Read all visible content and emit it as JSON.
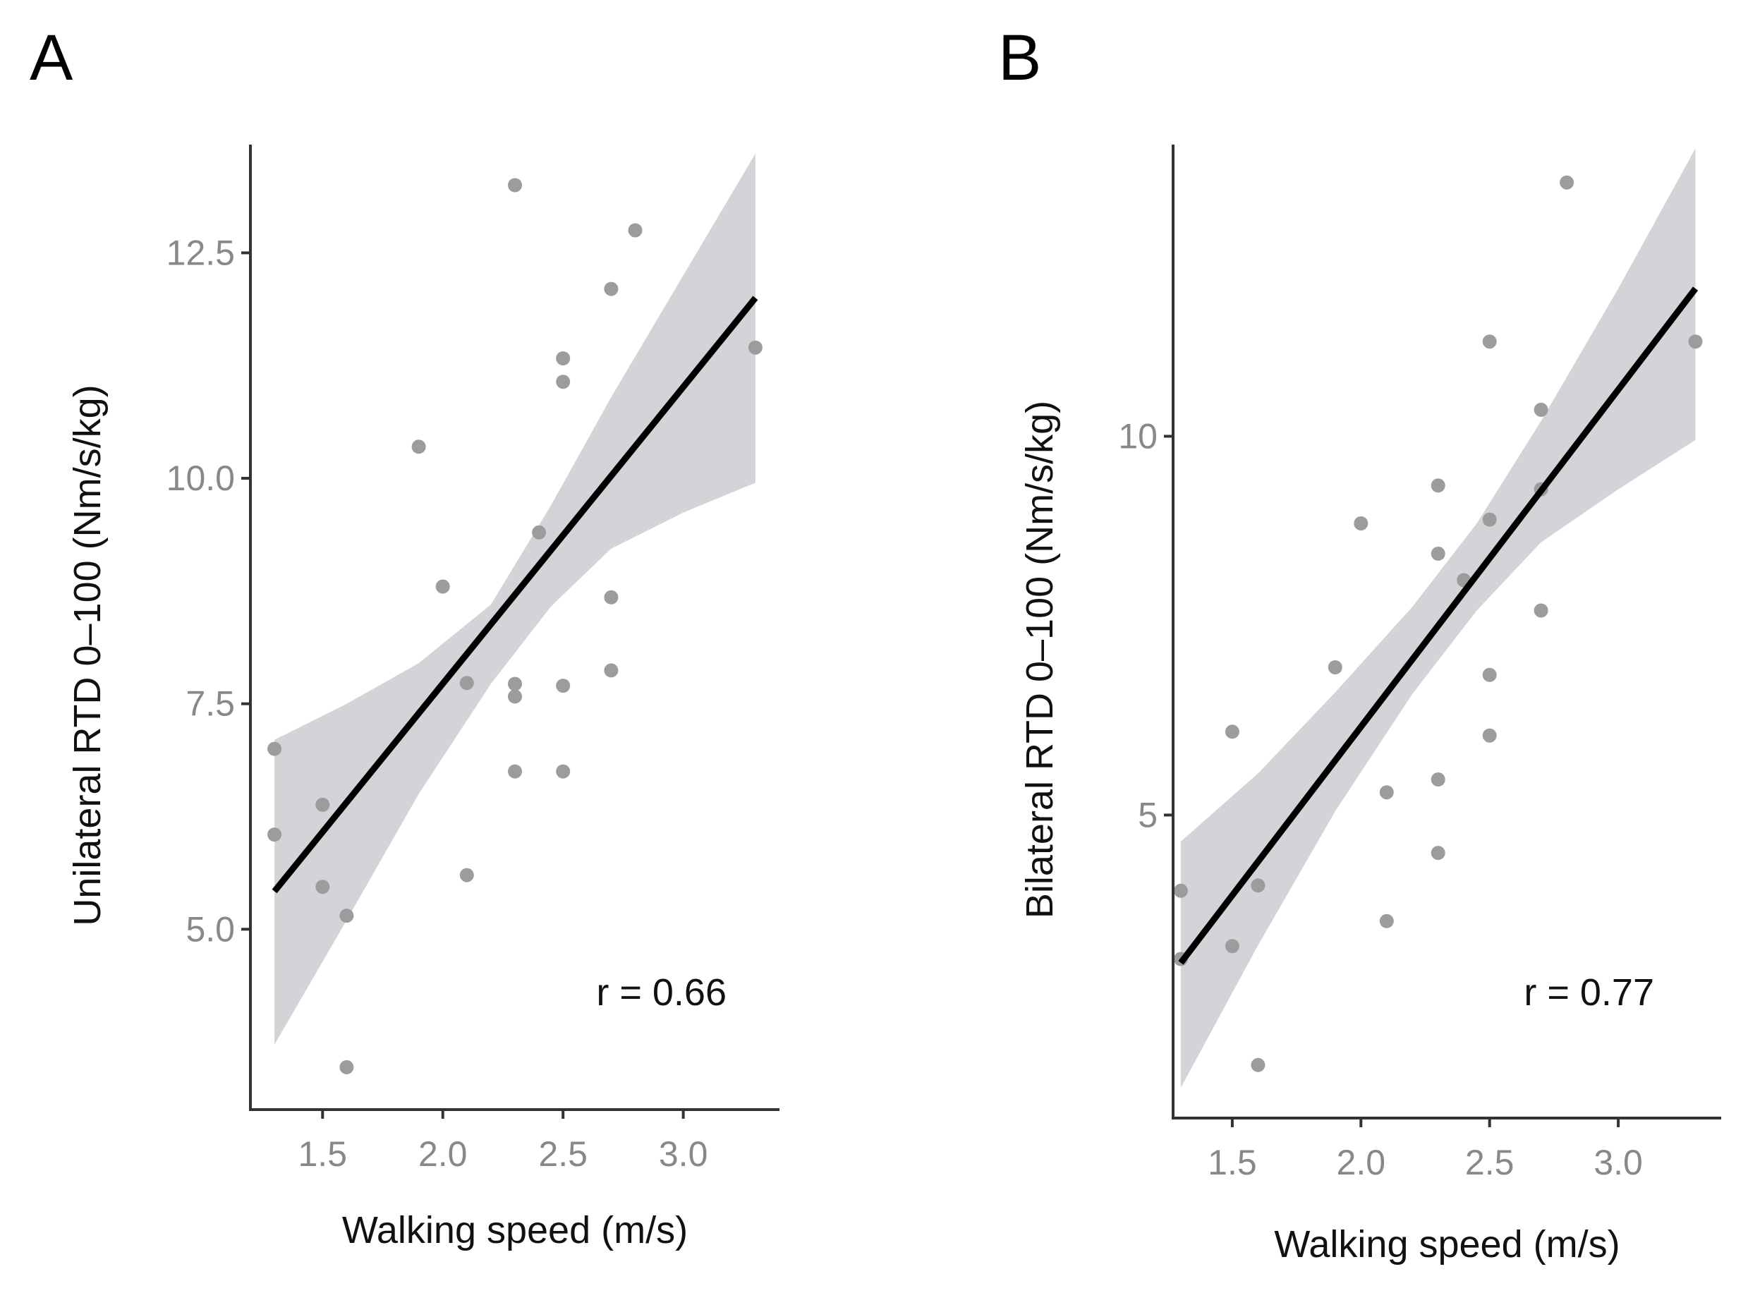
{
  "chart_data": [
    {
      "type": "scatter",
      "panel": "A",
      "title": "",
      "xlabel": "Walking speed (m/s)",
      "ylabel": "Unilateral RTD 0–100 (Nm/s/kg)",
      "xlim": [
        1.2,
        3.4
      ],
      "ylim": [
        3.0,
        13.7
      ],
      "xticks": [
        1.5,
        2.0,
        2.5,
        3.0
      ],
      "xtick_labels": [
        "1.5",
        "2.0",
        "2.5",
        "3.0"
      ],
      "yticks": [
        5.0,
        7.5,
        10.0,
        12.5
      ],
      "ytick_labels": [
        "5.0",
        "7.5",
        "10.0",
        "12.5"
      ],
      "grid": false,
      "annotation": "r = 0.66",
      "points": [
        {
          "x": 1.3,
          "y": 7.0
        },
        {
          "x": 1.3,
          "y": 6.05
        },
        {
          "x": 1.5,
          "y": 6.38
        },
        {
          "x": 1.5,
          "y": 5.47
        },
        {
          "x": 1.6,
          "y": 5.15
        },
        {
          "x": 1.6,
          "y": 3.47
        },
        {
          "x": 1.9,
          "y": 10.35
        },
        {
          "x": 2.0,
          "y": 8.8
        },
        {
          "x": 2.1,
          "y": 7.73
        },
        {
          "x": 2.1,
          "y": 5.6
        },
        {
          "x": 2.3,
          "y": 13.25
        },
        {
          "x": 2.3,
          "y": 7.72
        },
        {
          "x": 2.3,
          "y": 7.58
        },
        {
          "x": 2.3,
          "y": 6.75
        },
        {
          "x": 2.4,
          "y": 9.4
        },
        {
          "x": 2.5,
          "y": 11.33
        },
        {
          "x": 2.5,
          "y": 11.07
        },
        {
          "x": 2.5,
          "y": 7.7
        },
        {
          "x": 2.5,
          "y": 6.75
        },
        {
          "x": 2.7,
          "y": 12.1
        },
        {
          "x": 2.7,
          "y": 8.68
        },
        {
          "x": 2.7,
          "y": 7.87
        },
        {
          "x": 2.8,
          "y": 12.75
        },
        {
          "x": 3.3,
          "y": 11.45
        }
      ],
      "fit": {
        "x": [
          1.3,
          3.3
        ],
        "y": [
          5.42,
          12.0
        ]
      },
      "ci_band": {
        "x": [
          1.3,
          1.6,
          1.9,
          2.2,
          2.45,
          2.7,
          3.0,
          3.3
        ],
        "lower": [
          3.72,
          5.1,
          6.5,
          7.72,
          8.58,
          9.22,
          9.62,
          9.95
        ],
        "upper": [
          7.1,
          7.5,
          7.95,
          8.6,
          9.7,
          10.9,
          12.25,
          13.6
        ]
      }
    },
    {
      "type": "scatter",
      "panel": "B",
      "title": "",
      "xlabel": "Walking speed (m/s)",
      "ylabel": "Bilateral RTD 0–100 (Nm/s/kg)",
      "xlim": [
        1.27,
        3.4
      ],
      "ylim": [
        1.0,
        13.85
      ],
      "xticks": [
        1.5,
        2.0,
        2.5,
        3.0
      ],
      "xtick_labels": [
        "1.5",
        "2.0",
        "2.5",
        "3.0"
      ],
      "yticks": [
        5,
        10
      ],
      "ytick_labels": [
        "5",
        "10"
      ],
      "grid": false,
      "annotation": "r = 0.77",
      "points": [
        {
          "x": 1.3,
          "y": 4.0
        },
        {
          "x": 1.3,
          "y": 3.1
        },
        {
          "x": 1.5,
          "y": 6.1
        },
        {
          "x": 1.5,
          "y": 3.27
        },
        {
          "x": 1.6,
          "y": 4.07
        },
        {
          "x": 1.6,
          "y": 1.7
        },
        {
          "x": 1.9,
          "y": 6.95
        },
        {
          "x": 2.0,
          "y": 8.85
        },
        {
          "x": 2.1,
          "y": 5.3
        },
        {
          "x": 2.1,
          "y": 3.6
        },
        {
          "x": 2.3,
          "y": 9.35
        },
        {
          "x": 2.3,
          "y": 8.45
        },
        {
          "x": 2.3,
          "y": 5.47
        },
        {
          "x": 2.3,
          "y": 4.5
        },
        {
          "x": 2.4,
          "y": 8.1
        },
        {
          "x": 2.5,
          "y": 11.25
        },
        {
          "x": 2.5,
          "y": 8.9
        },
        {
          "x": 2.5,
          "y": 6.85
        },
        {
          "x": 2.5,
          "y": 6.05
        },
        {
          "x": 2.7,
          "y": 10.35
        },
        {
          "x": 2.7,
          "y": 9.3
        },
        {
          "x": 2.7,
          "y": 7.7
        },
        {
          "x": 2.8,
          "y": 13.35
        },
        {
          "x": 3.3,
          "y": 11.25
        }
      ],
      "fit": {
        "x": [
          1.3,
          3.3
        ],
        "y": [
          3.05,
          11.95
        ]
      },
      "ci_band": {
        "x": [
          1.3,
          1.6,
          1.9,
          2.2,
          2.45,
          2.7,
          3.0,
          3.3
        ],
        "lower": [
          1.4,
          3.28,
          5.05,
          6.6,
          7.7,
          8.6,
          9.3,
          9.95
        ],
        "upper": [
          4.65,
          5.55,
          6.62,
          7.75,
          8.85,
          10.2,
          11.95,
          13.8
        ]
      }
    }
  ]
}
